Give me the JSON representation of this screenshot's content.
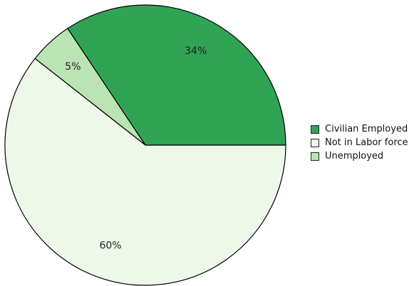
{
  "chart_data": {
    "type": "pie",
    "title": "",
    "slices": [
      {
        "name": "Civilian Employed",
        "value": 34,
        "label": "34%",
        "color": "#31a354"
      },
      {
        "name": "Unemployed",
        "value": 5,
        "label": "5%",
        "color": "#bae4b3"
      },
      {
        "name": "Not in Labor force",
        "value": 60,
        "label": "60%",
        "color": "#edf8e9"
      }
    ],
    "legend": {
      "position": "right",
      "items": [
        {
          "name": "Civilian Employed",
          "color": "#31a354"
        },
        {
          "name": "Not in Labor force",
          "color": "#edf8e9"
        },
        {
          "name": "Unemployed",
          "color": "#bae4b3"
        }
      ]
    }
  }
}
